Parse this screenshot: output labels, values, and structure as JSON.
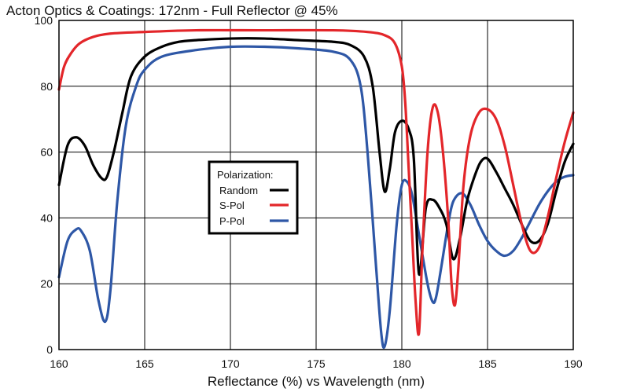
{
  "chart_data": {
    "type": "line",
    "title": "Acton Optics & Coatings: 172nm - Full Reflector @ 45%",
    "xlabel": "Reflectance (%)  vs  Wavelength (nm)",
    "ylabel": "",
    "xlim": [
      160,
      190
    ],
    "ylim": [
      0,
      100
    ],
    "xticks": [
      160,
      165,
      170,
      175,
      180,
      185,
      190
    ],
    "yticks": [
      0,
      20,
      40,
      60,
      80,
      100
    ],
    "grid": true,
    "legend": {
      "title": "Polarization:",
      "placement": "center-left",
      "entries": [
        "Random",
        "S-Pol",
        "P-Pol"
      ]
    },
    "series": [
      {
        "name": "Random",
        "color": "#000000",
        "x": [
          160,
          160.5,
          161,
          161.5,
          162,
          162.5,
          162.8,
          163.2,
          163.7,
          164.2,
          165,
          166,
          167,
          168,
          170,
          172,
          174,
          176,
          177,
          177.8,
          178.3,
          178.7,
          179,
          179.3,
          179.6,
          180,
          180.4,
          180.7,
          181,
          181.4,
          181.8,
          182.2,
          182.6,
          183,
          183.4,
          183.8,
          184.2,
          184.6,
          185,
          185.5,
          186,
          186.5,
          187,
          187.5,
          188,
          188.5,
          189,
          189.5,
          190
        ],
        "y": [
          50,
          62,
          64.5,
          62,
          56,
          52,
          52.5,
          60,
          72,
          83,
          89,
          92,
          93.5,
          94,
          94.5,
          94.5,
          94,
          93.5,
          92.5,
          89,
          80,
          60,
          48,
          55,
          66,
          69.5,
          67,
          58,
          23,
          43,
          45.5,
          43,
          38,
          27.5,
          34,
          45,
          52,
          57,
          58,
          54,
          49,
          44,
          38,
          33,
          33,
          38,
          48,
          57,
          62.5
        ]
      },
      {
        "name": "S-Pol",
        "color": "#e3262a",
        "x": [
          160,
          160.3,
          160.7,
          161.2,
          162,
          163,
          165,
          168,
          172,
          176,
          178,
          179,
          179.6,
          180,
          180.2,
          180.4,
          180.6,
          180.8,
          181,
          181.2,
          181.5,
          181.8,
          182.1,
          182.4,
          182.7,
          182.9,
          183.1,
          183.3,
          183.6,
          184,
          184.5,
          185,
          185.5,
          186,
          186.5,
          187,
          187.5,
          188,
          188.5,
          189,
          189.5,
          190
        ],
        "y": [
          79,
          86,
          90,
          93,
          95,
          96,
          96.5,
          97,
          97,
          97,
          96.5,
          95.5,
          93,
          86,
          75,
          55,
          35,
          15,
          5,
          30,
          60,
          73.5,
          72,
          60,
          40,
          20,
          13.5,
          25,
          50,
          65,
          72,
          73,
          70,
          62,
          50,
          38,
          30,
          31,
          40,
          52,
          63,
          72
        ]
      },
      {
        "name": "P-Pol",
        "color": "#2e57a6",
        "x": [
          160,
          160.5,
          161,
          161.3,
          161.8,
          162.3,
          162.7,
          163,
          163.4,
          163.9,
          164.5,
          165,
          166,
          168,
          170,
          172,
          174,
          176,
          177,
          177.6,
          178,
          178.5,
          178.8,
          179,
          179.3,
          179.7,
          180,
          180.3,
          180.6,
          181,
          181.5,
          181.8,
          182,
          182.3,
          182.7,
          183,
          183.5,
          184,
          184.5,
          185,
          185.5,
          186,
          186.5,
          187,
          187.5,
          188,
          188.5,
          189,
          189.5,
          190
        ],
        "y": [
          22,
          33,
          36.5,
          36,
          30,
          15,
          8.5,
          18,
          45,
          68,
          80,
          85,
          89,
          91,
          92,
          92,
          91.5,
          90.5,
          88,
          80,
          60,
          25,
          5,
          1,
          12,
          38,
          50,
          51,
          47,
          35,
          20,
          14.5,
          16,
          25,
          38,
          45,
          47.5,
          44,
          38,
          33,
          30,
          28.5,
          30,
          34,
          39,
          44,
          48,
          51,
          52.5,
          53
        ]
      }
    ]
  }
}
